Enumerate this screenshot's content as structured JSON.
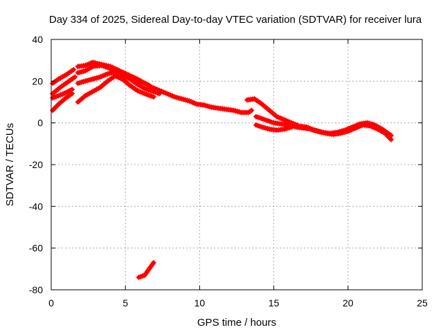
{
  "chart_data": {
    "type": "scatter",
    "title": "Day 334 of 2025, Sidereal Day-to-day VTEC variation (SDTVAR) for receiver lura",
    "xlabel": "GPS time / hours",
    "ylabel": "SDTVAR / TECUs",
    "xlim": [
      0,
      25
    ],
    "ylim": [
      -80,
      40
    ],
    "xticks": [
      0,
      5,
      10,
      15,
      20,
      25
    ],
    "yticks": [
      -80,
      -60,
      -40,
      -20,
      0,
      20,
      40
    ],
    "xtick_labels": [
      "0",
      "5",
      "10",
      "15",
      "20",
      "25"
    ],
    "ytick_labels": [
      "-80",
      "-60",
      "-40",
      "-20",
      "0",
      "20",
      "40"
    ],
    "grid": true,
    "marker": "plus",
    "color": "#ff0000",
    "series": [
      {
        "name": "trace-1",
        "points": [
          [
            0.1,
            19
          ],
          [
            0.5,
            21
          ],
          [
            1.0,
            23
          ],
          [
            1.5,
            25.5
          ]
        ]
      },
      {
        "name": "trace-2",
        "points": [
          [
            0.1,
            14
          ],
          [
            0.6,
            17
          ],
          [
            1.2,
            20
          ],
          [
            1.6,
            22
          ]
        ]
      },
      {
        "name": "trace-3",
        "points": [
          [
            0.1,
            12
          ],
          [
            0.5,
            13
          ],
          [
            1.0,
            14.5
          ],
          [
            1.4,
            16
          ]
        ]
      },
      {
        "name": "trace-4",
        "points": [
          [
            0.1,
            6
          ],
          [
            0.5,
            9
          ],
          [
            1.0,
            12
          ],
          [
            1.4,
            14
          ]
        ]
      },
      {
        "name": "trace-5",
        "points": [
          [
            1.8,
            27
          ],
          [
            2.3,
            27.5
          ],
          [
            2.8,
            29
          ],
          [
            3.4,
            28
          ],
          [
            4.0,
            27
          ],
          [
            4.6,
            25
          ],
          [
            5.2,
            23
          ],
          [
            5.8,
            21
          ],
          [
            6.3,
            19
          ],
          [
            6.8,
            17
          ],
          [
            7.3,
            15.5
          ],
          [
            7.8,
            14
          ],
          [
            8.3,
            12.5
          ],
          [
            8.8,
            11.5
          ],
          [
            9.3,
            10.5
          ],
          [
            9.8,
            9
          ],
          [
            10.3,
            8.5
          ],
          [
            10.8,
            7.5
          ],
          [
            11.3,
            7
          ],
          [
            11.8,
            6.5
          ],
          [
            12.3,
            6
          ],
          [
            12.8,
            5
          ],
          [
            13.3,
            5
          ],
          [
            13.5,
            6
          ]
        ]
      },
      {
        "name": "trace-6",
        "points": [
          [
            1.8,
            24
          ],
          [
            2.3,
            25
          ],
          [
            2.8,
            27
          ],
          [
            3.4,
            27.5
          ],
          [
            4.0,
            26
          ],
          [
            4.6,
            24
          ],
          [
            5.2,
            22
          ],
          [
            5.8,
            20.5
          ],
          [
            6.3,
            19
          ],
          [
            6.6,
            18
          ]
        ]
      },
      {
        "name": "trace-7",
        "points": [
          [
            1.8,
            19
          ],
          [
            2.3,
            20
          ],
          [
            2.8,
            21
          ],
          [
            3.3,
            22
          ],
          [
            3.8,
            23.5
          ],
          [
            4.3,
            24.5
          ],
          [
            4.8,
            23
          ],
          [
            5.3,
            21
          ],
          [
            5.8,
            18.5
          ],
          [
            6.3,
            16.5
          ],
          [
            6.9,
            15
          ],
          [
            7.3,
            14
          ]
        ]
      },
      {
        "name": "trace-8",
        "points": [
          [
            1.8,
            10
          ],
          [
            2.3,
            13
          ],
          [
            2.8,
            15
          ],
          [
            3.3,
            17
          ],
          [
            3.8,
            20
          ],
          [
            4.3,
            22.5
          ],
          [
            4.8,
            21
          ],
          [
            5.3,
            18
          ],
          [
            5.8,
            15.5
          ],
          [
            6.3,
            14
          ],
          [
            6.9,
            12.5
          ]
        ]
      },
      {
        "name": "trace-9",
        "points": [
          [
            13.2,
            11
          ],
          [
            13.7,
            11.5
          ],
          [
            14.2,
            9
          ],
          [
            14.7,
            6
          ],
          [
            15.2,
            3
          ],
          [
            15.7,
            1.5
          ],
          [
            16.2,
            0
          ],
          [
            16.7,
            -1.5
          ],
          [
            17.2,
            -2
          ],
          [
            17.7,
            -3.5
          ],
          [
            18.2,
            -4.5
          ],
          [
            18.8,
            -5
          ],
          [
            19.3,
            -4.5
          ],
          [
            19.8,
            -3.5
          ],
          [
            20.3,
            -2
          ],
          [
            20.8,
            -0.5
          ],
          [
            21.3,
            0
          ],
          [
            21.8,
            -1
          ],
          [
            22.3,
            -3
          ],
          [
            22.9,
            -6
          ]
        ]
      },
      {
        "name": "trace-10",
        "points": [
          [
            13.8,
            3
          ],
          [
            14.2,
            2
          ],
          [
            14.6,
            1
          ],
          [
            15.0,
            0
          ],
          [
            15.5,
            -0.5
          ],
          [
            16.0,
            -1
          ],
          [
            16.5,
            -2
          ],
          [
            17.0,
            -2.5
          ],
          [
            17.5,
            -3
          ],
          [
            18.0,
            -4
          ],
          [
            18.5,
            -5
          ],
          [
            19.0,
            -5.5
          ],
          [
            19.5,
            -5
          ],
          [
            20.0,
            -4
          ],
          [
            20.5,
            -2.5
          ],
          [
            21.0,
            -1
          ],
          [
            21.5,
            -1.5
          ],
          [
            22.0,
            -3
          ],
          [
            22.5,
            -5
          ],
          [
            22.9,
            -8
          ]
        ]
      },
      {
        "name": "trace-11",
        "points": [
          [
            13.8,
            -1
          ],
          [
            14.2,
            -2
          ],
          [
            14.7,
            -3
          ],
          [
            15.2,
            -3.5
          ],
          [
            15.7,
            -3
          ],
          [
            16.2,
            -2
          ]
        ]
      },
      {
        "name": "trace-12",
        "points": [
          [
            5.9,
            -74
          ],
          [
            6.3,
            -73
          ],
          [
            6.7,
            -69
          ],
          [
            6.9,
            -67
          ]
        ]
      }
    ]
  }
}
